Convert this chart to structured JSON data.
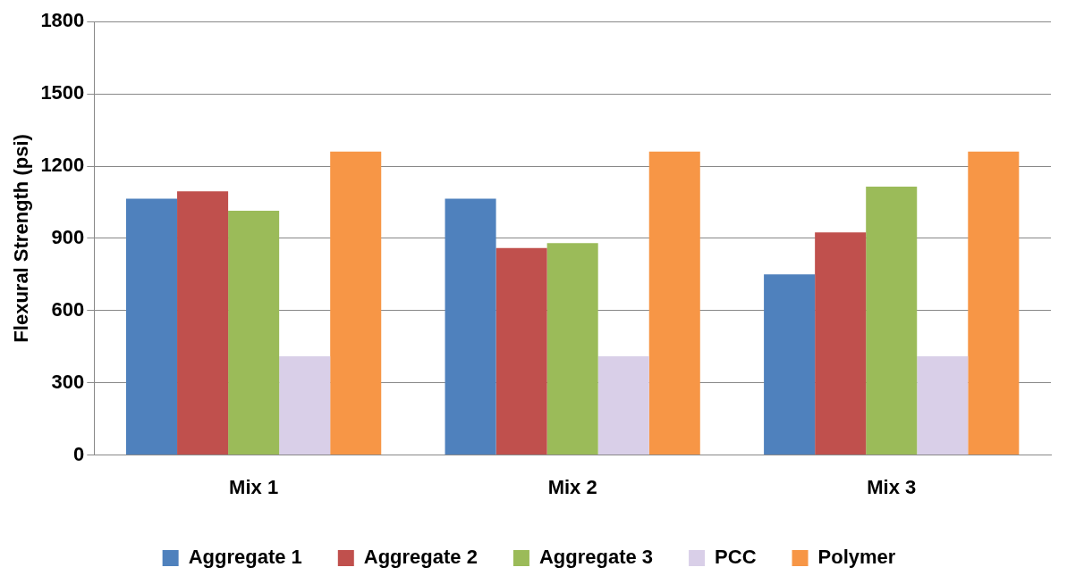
{
  "chart_data": {
    "type": "bar",
    "ylabel": "Flexural Strength (psi)",
    "categories": [
      "Mix 1",
      "Mix 2",
      "Mix 3"
    ],
    "series": [
      {
        "name": "Aggregate 1",
        "color": "#4f81bd",
        "values": [
          1065,
          1065,
          750
        ]
      },
      {
        "name": "Aggregate 2",
        "color": "#c0504d",
        "values": [
          1095,
          860,
          925
        ]
      },
      {
        "name": "Aggregate 3",
        "color": "#9bbb59",
        "values": [
          1015,
          880,
          1115
        ]
      },
      {
        "name": "PCC",
        "color": "#d9cfe8",
        "values": [
          410,
          410,
          410
        ]
      },
      {
        "name": "Polymer",
        "color": "#f79646",
        "values": [
          1260,
          1260,
          1260
        ]
      }
    ],
    "ylim": [
      0,
      1800
    ],
    "yticks": [
      0,
      300,
      600,
      900,
      1200,
      1500,
      1800
    ],
    "grid": "y",
    "legend": "bottom"
  }
}
